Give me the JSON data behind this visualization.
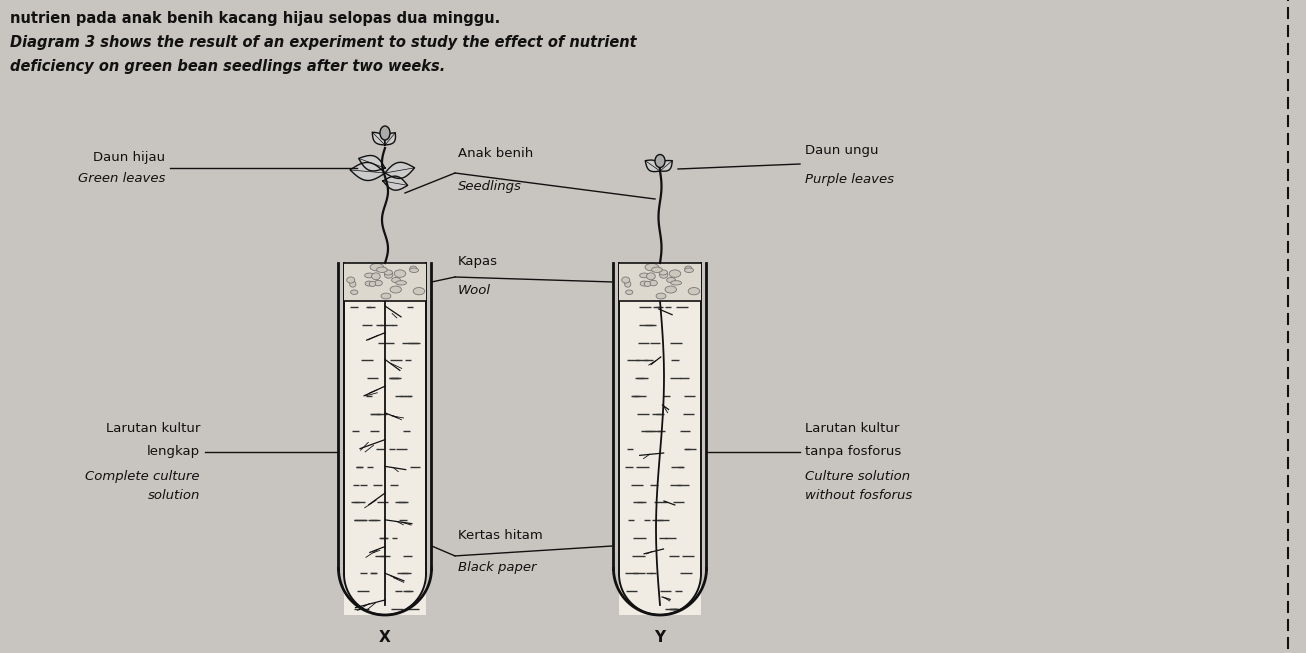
{
  "bg_color": "#c8c4bf",
  "text_color": "#111111",
  "header_line1": "nutrien pada anak benih kacang hijau selopas dua minggu.",
  "header_line2_italic": "Diagram 3 shows the result of an experiment to study the effect of nutrient",
  "header_line3_italic": "deficiency on green bean seedlings after two weeks.",
  "label_daun_hijau": "Daun hijau",
  "label_green_leaves": "Green leaves",
  "label_anak_benih": "Anak benih",
  "label_seedlings": "Seedlings",
  "label_kapas": "Kapas",
  "label_wool": "Wool",
  "label_kertas_hitam": "Kertas hitam",
  "label_black_paper": "Black paper",
  "label_larutan_kultur": "Larutan kultur",
  "label_lengkap": "lengkap",
  "label_complete": "Complete culture",
  "label_solution": "solution",
  "label_daun_ungu": "Daun ungu",
  "label_purple_leaves": "Purple leaves",
  "label_larutan_tanpa": "Larutan kultur",
  "label_tanpa_fosforus": "tanpa fosforus",
  "label_culture_solution": "Culture solution",
  "label_without_fosforus": "without fosforus",
  "label_X": "X",
  "label_Y": "Y"
}
